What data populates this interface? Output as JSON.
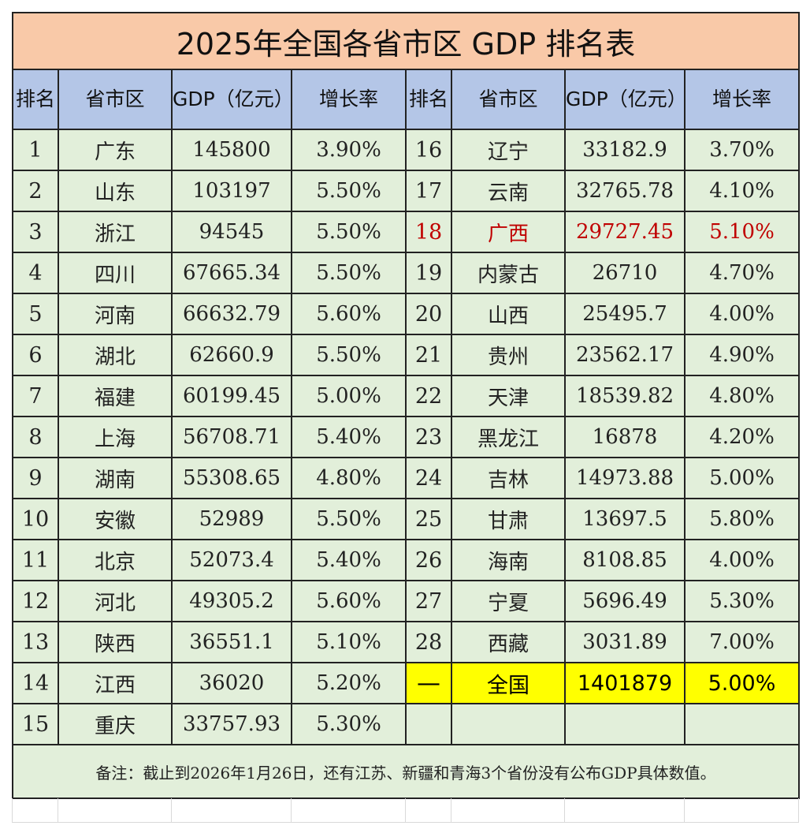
{
  "title": "2025年全国各省市区 GDP 排名表",
  "headers": {
    "rank": "排名",
    "region": "省市区",
    "gdp": "GDP（亿元）",
    "growth": "增长率"
  },
  "left": [
    {
      "rank": "1",
      "region": "广东",
      "gdp": "145800",
      "growth": "3.90%"
    },
    {
      "rank": "2",
      "region": "山东",
      "gdp": "103197",
      "growth": "5.50%"
    },
    {
      "rank": "3",
      "region": "浙江",
      "gdp": "94545",
      "growth": "5.50%"
    },
    {
      "rank": "4",
      "region": "四川",
      "gdp": "67665.34",
      "growth": "5.50%"
    },
    {
      "rank": "5",
      "region": "河南",
      "gdp": "66632.79",
      "growth": "5.60%"
    },
    {
      "rank": "6",
      "region": "湖北",
      "gdp": "62660.9",
      "growth": "5.50%"
    },
    {
      "rank": "7",
      "region": "福建",
      "gdp": "60199.45",
      "growth": "5.00%"
    },
    {
      "rank": "8",
      "region": "上海",
      "gdp": "56708.71",
      "growth": "5.40%"
    },
    {
      "rank": "9",
      "region": "湖南",
      "gdp": "55308.65",
      "growth": "4.80%"
    },
    {
      "rank": "10",
      "region": "安徽",
      "gdp": "52989",
      "growth": "5.50%"
    },
    {
      "rank": "11",
      "region": "北京",
      "gdp": "52073.4",
      "growth": "5.40%"
    },
    {
      "rank": "12",
      "region": "河北",
      "gdp": "49305.2",
      "growth": "5.60%"
    },
    {
      "rank": "13",
      "region": "陕西",
      "gdp": "36551.1",
      "growth": "5.10%"
    },
    {
      "rank": "14",
      "region": "江西",
      "gdp": "36020",
      "growth": "5.20%"
    },
    {
      "rank": "15",
      "region": "重庆",
      "gdp": "33757.93",
      "growth": "5.30%"
    }
  ],
  "right": [
    {
      "rank": "16",
      "region": "辽宁",
      "gdp": "33182.9",
      "growth": "3.70%"
    },
    {
      "rank": "17",
      "region": "云南",
      "gdp": "32765.78",
      "growth": "4.10%"
    },
    {
      "rank": "18",
      "region": "广西",
      "gdp": "29727.45",
      "growth": "5.10%"
    },
    {
      "rank": "19",
      "region": "内蒙古",
      "gdp": "26710",
      "growth": "4.70%"
    },
    {
      "rank": "20",
      "region": "山西",
      "gdp": "25495.7",
      "growth": "4.00%"
    },
    {
      "rank": "21",
      "region": "贵州",
      "gdp": "23562.17",
      "growth": "4.90%"
    },
    {
      "rank": "22",
      "region": "天津",
      "gdp": "18539.82",
      "growth": "4.80%"
    },
    {
      "rank": "23",
      "region": "黑龙江",
      "gdp": "16878",
      "growth": "4.20%"
    },
    {
      "rank": "24",
      "region": "吉林",
      "gdp": "14973.88",
      "growth": "5.00%"
    },
    {
      "rank": "25",
      "region": "甘肃",
      "gdp": "13697.5",
      "growth": "5.80%"
    },
    {
      "rank": "26",
      "region": "海南",
      "gdp": "8108.85",
      "growth": "4.00%"
    },
    {
      "rank": "27",
      "region": "宁夏",
      "gdp": "5696.49",
      "growth": "5.30%"
    },
    {
      "rank": "28",
      "region": "西藏",
      "gdp": "3031.89",
      "growth": "7.00%"
    }
  ],
  "total": {
    "rank": "—",
    "region": "全国",
    "gdp": "1401879",
    "growth": "5.00%"
  },
  "note": "备注：截止到2026年1月26日，还有江苏、新疆和青海3个省份没有公布GDP具体数值。",
  "colors": {
    "title_bg": "#f9c9a8",
    "header_bg": "#b4c6e7",
    "row_bg": "#e2efda",
    "highlight_text": "#c00000",
    "total_bg": "#ffff00"
  }
}
